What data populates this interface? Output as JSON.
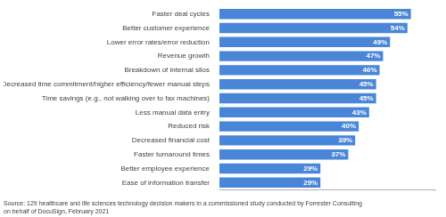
{
  "chart_data": {
    "type": "bar",
    "orientation": "horizontal",
    "categories": [
      "Ease of information transfer",
      "Better employee experience",
      "Faster turnaround times",
      "Decreased financial cost",
      "Reduced risk",
      "Less manual data entry",
      "Time savings (e.g., not walking over to fax machines)",
      "Decreased time commitment/higher efficiency/fewer manual steps",
      "Breakdown of internal silos",
      "Revenue growth",
      "Lower error rates/error reduction",
      "Better customer experience",
      "Faster deal cycles"
    ],
    "values": [
      29,
      29,
      37,
      39,
      40,
      43,
      45,
      45,
      46,
      47,
      49,
      54,
      55
    ],
    "value_labels": [
      "29%",
      "29%",
      "37%",
      "39%",
      "40%",
      "43%",
      "45%",
      "45%",
      "46%",
      "47%",
      "49%",
      "54%",
      "55%"
    ],
    "data_labels": true,
    "color": "#4a86d8",
    "xlim": [
      0,
      62
    ],
    "xticks": [],
    "tick_labels": "y",
    "grid": false,
    "annotations": [
      "Source: 129 healthcare and life sciences technology decision makers in a commissioned study conducted by Forrester Consulting\non behalf of DocuSign, February 2021"
    ]
  }
}
